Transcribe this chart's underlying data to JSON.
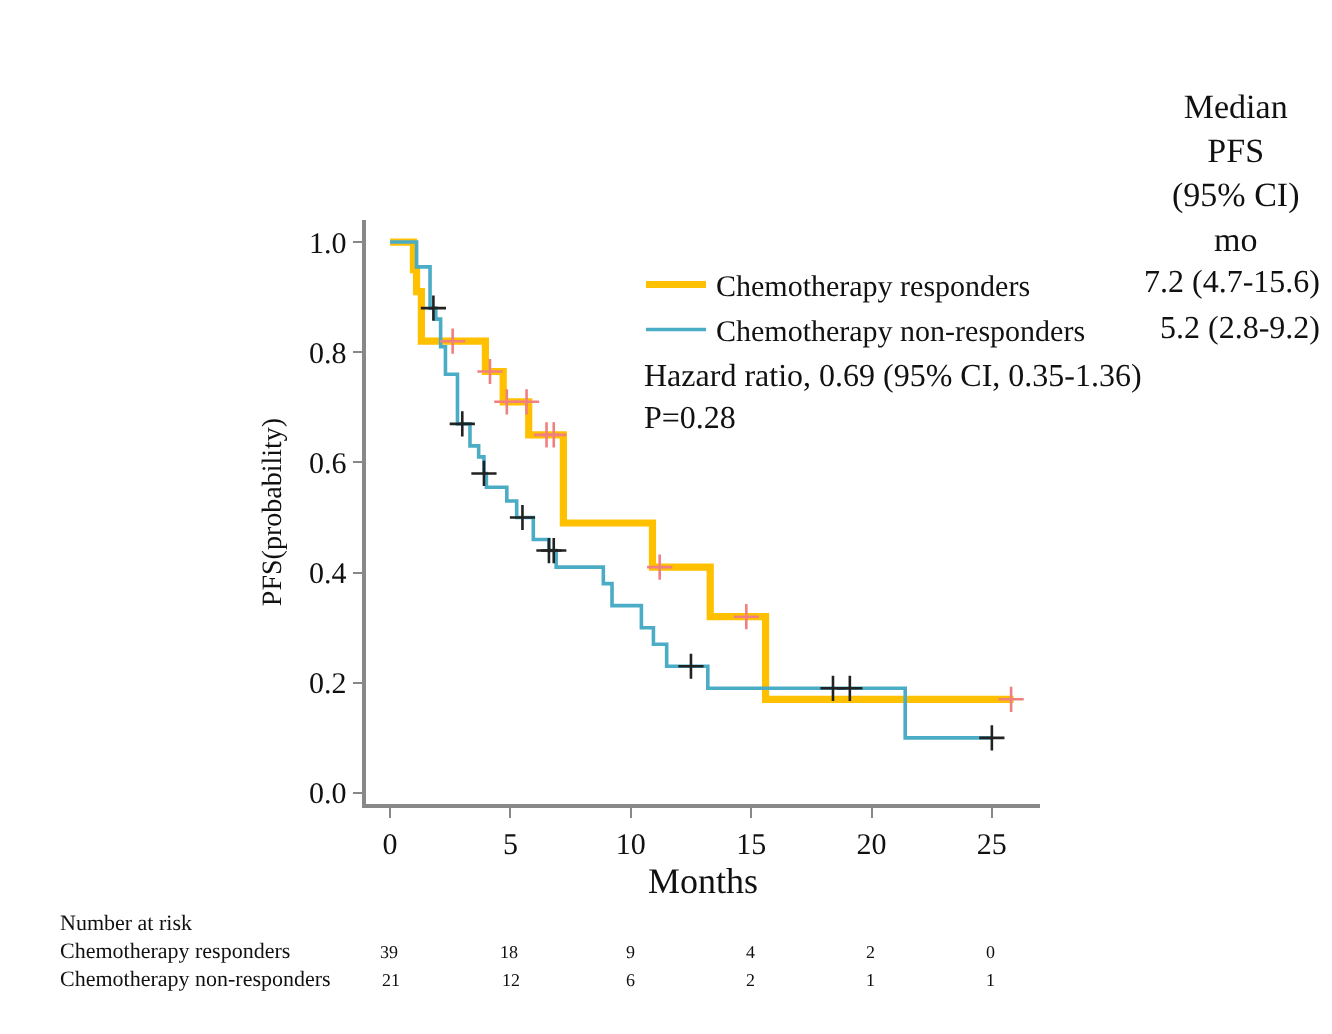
{
  "chart_data": {
    "type": "step",
    "xlabel": "Months",
    "ylabel": "PFS(probability)",
    "xlim": [
      -1,
      27
    ],
    "xticks": [
      0,
      5,
      10,
      15,
      20,
      25
    ],
    "ylim": [
      -0.02,
      1.04
    ],
    "yticks": [
      {
        "value": 0,
        "label": "0.0"
      },
      {
        "value": 0.2,
        "label": "0.2"
      },
      {
        "value": 0.4,
        "label": "0.4"
      },
      {
        "value": 0.6,
        "label": "0.6"
      },
      {
        "value": 0.8,
        "label": "0.8"
      },
      {
        "value": 1,
        "label": "1.0"
      }
    ],
    "legend": "top right",
    "series": [
      {
        "name": "Chemotherapy responders",
        "color": "#ffc000",
        "marker": "none",
        "x": [
          0,
          0.97,
          1.1,
          1.3,
          3.96,
          4.7,
          5.76,
          7.2,
          10.9,
          13.3,
          15.6,
          25.9
        ],
        "values": [
          1.0,
          0.95,
          0.91,
          0.82,
          0.765,
          0.71,
          0.65,
          0.49,
          0.41,
          0.32,
          0.17,
          0.17
        ]
      },
      {
        "name": "Chemotherapy non-responders",
        "color": "#4bacc6",
        "marker": "none",
        "x": [
          0,
          1.1,
          1.66,
          1.9,
          2.1,
          2.3,
          2.8,
          3.32,
          3.68,
          3.9,
          4.0,
          4.85,
          5.26,
          5.95,
          6.6,
          6.9,
          8.86,
          9.22,
          10.44,
          10.94,
          11.49,
          13.2,
          21.4,
          25.0
        ],
        "values": [
          1.0,
          0.955,
          0.88,
          0.86,
          0.81,
          0.76,
          0.67,
          0.63,
          0.61,
          0.58,
          0.555,
          0.53,
          0.5,
          0.46,
          0.44,
          0.41,
          0.38,
          0.34,
          0.3,
          0.27,
          0.23,
          0.19,
          0.1,
          0.1
        ]
      },
      {
        "type": "scatter",
        "color": "#f08080",
        "marker": "cross",
        "x": [
          2.6,
          4.15,
          4.85,
          5.67,
          6.5,
          6.8,
          11.2,
          14.8,
          25.8
        ],
        "values": [
          0.82,
          0.765,
          0.71,
          0.71,
          0.65,
          0.65,
          0.41,
          0.32,
          0.17
        ]
      },
      {
        "type": "scatter",
        "color": "#222222",
        "marker": "cross",
        "x": [
          1.8,
          3.0,
          3.9,
          5.5,
          6.6,
          6.8,
          12.5,
          18.4,
          19.1,
          25.0
        ],
        "values": [
          0.88,
          0.67,
          0.58,
          0.5,
          0.44,
          0.44,
          0.23,
          0.19,
          0.19,
          0.1
        ]
      }
    ],
    "annotations": [
      "Median\nPFS\n(95% CI)\nmo",
      "7.2 (4.7-15.6)",
      "5.2 (2.8-9.2)",
      "Hazard ratio, 0.69 (95% CI, 0.35-1.36)\nP=0.28",
      "Number at risk",
      "Chemotherapy responders",
      "39",
      "18",
      "9",
      "4",
      "2",
      "0",
      "Chemotherapy non-responders",
      "21",
      "12",
      "6",
      "2",
      "1",
      "1"
    ]
  }
}
